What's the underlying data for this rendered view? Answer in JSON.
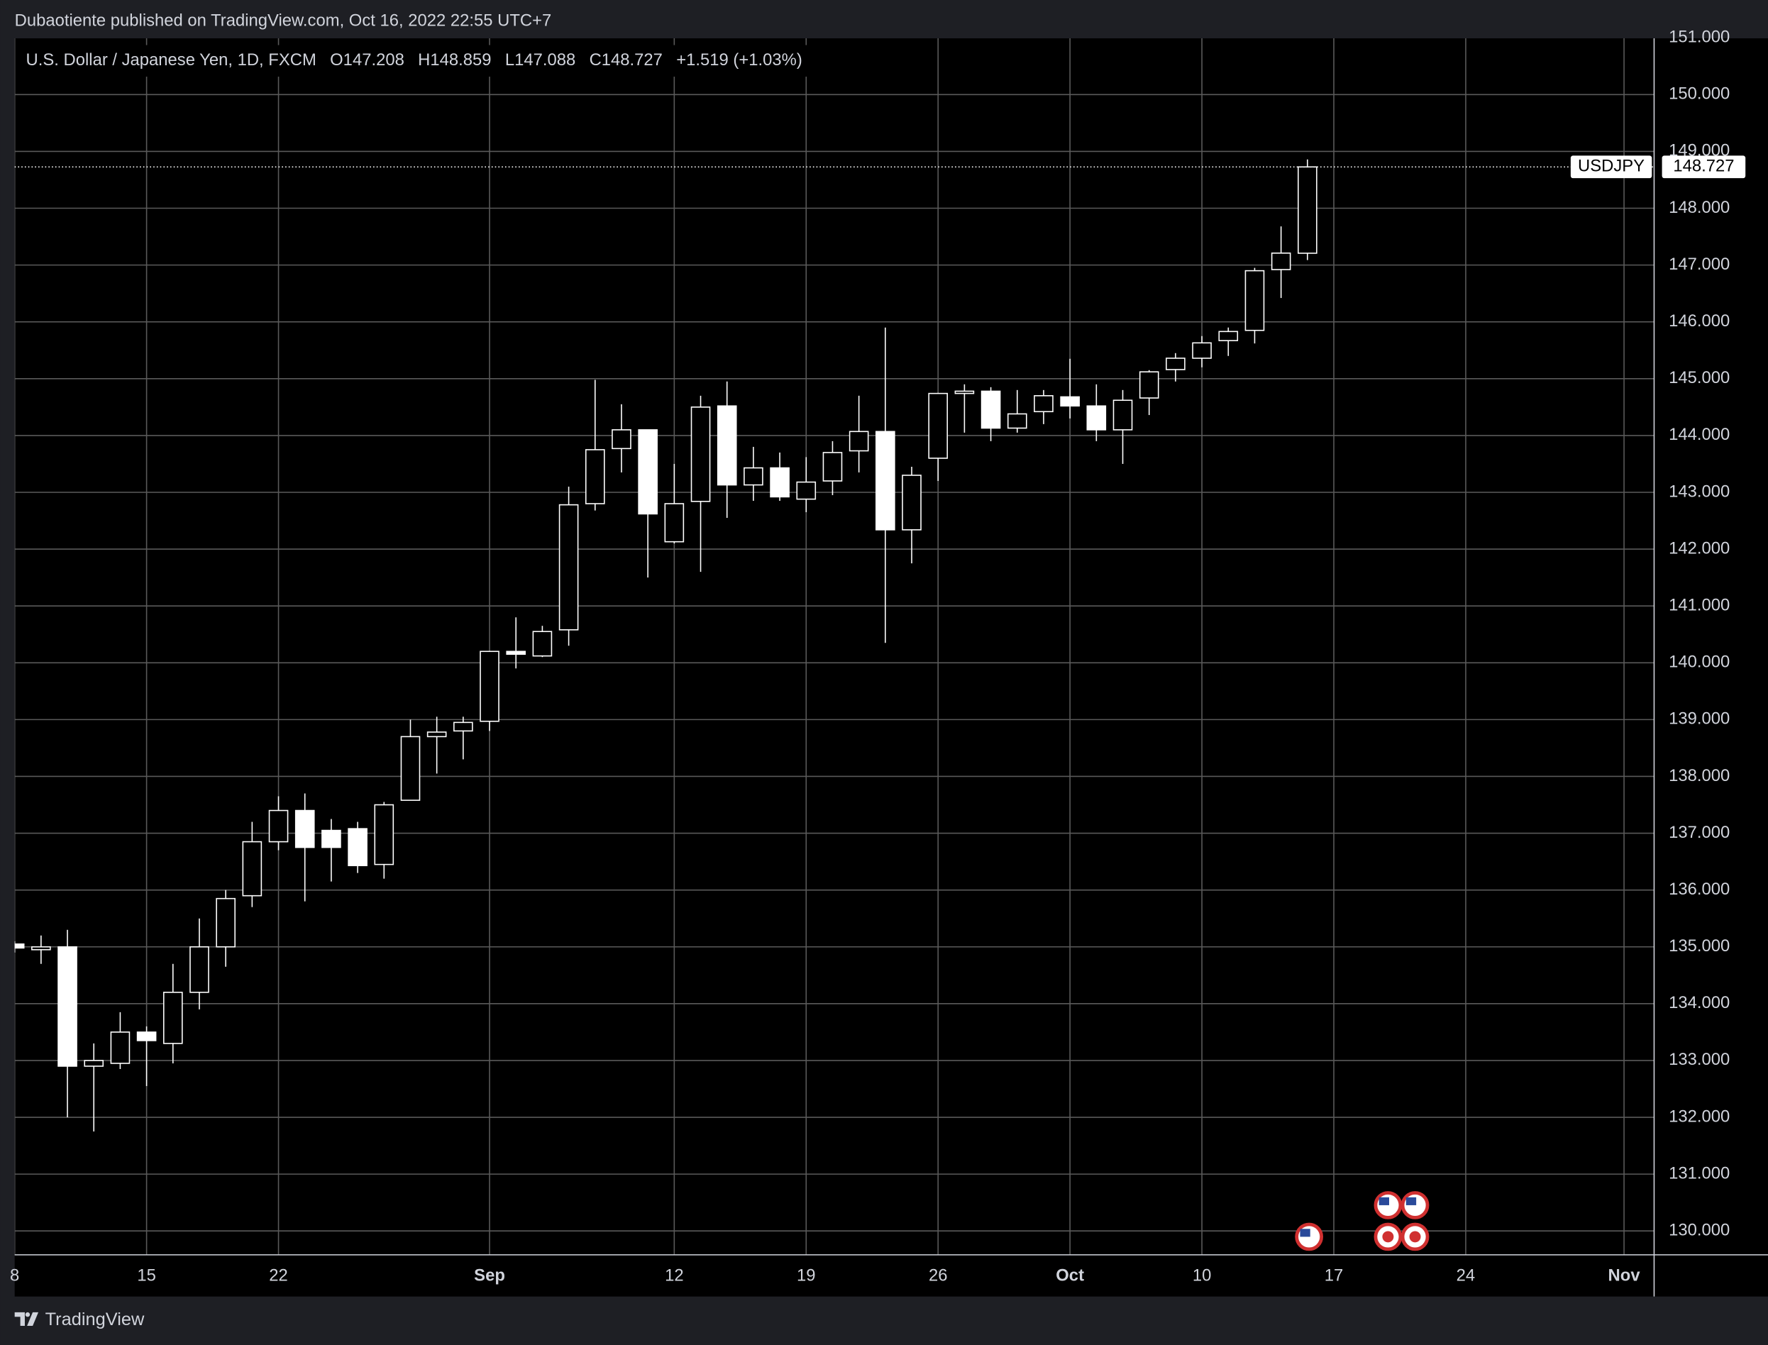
{
  "header": {
    "published": "Dubaotiente published on TradingView.com, Oct 16, 2022 22:55 UTC+7",
    "symbol": "U.S. Dollar / Japanese Yen, 1D, FXCM",
    "open": "O147.208",
    "high": "H148.859",
    "low": "L147.088",
    "close": "C148.727",
    "change": "+1.519 (+1.03%)"
  },
  "footer": {
    "brand": "TradingView"
  },
  "chart_data": {
    "type": "candlestick",
    "x": [
      -5,
      -4,
      -3,
      -2,
      -1,
      0,
      1,
      2,
      3,
      4,
      5,
      6,
      7,
      8,
      9,
      10,
      11,
      12,
      13,
      14,
      15,
      16,
      17,
      18,
      19,
      20,
      21,
      22,
      23,
      24,
      25,
      26,
      27,
      28,
      29,
      30,
      31,
      32,
      33,
      34,
      35,
      36,
      37,
      38,
      39,
      40,
      41,
      42,
      43,
      44
    ],
    "open": [
      135.05,
      134.95,
      135.0,
      132.9,
      132.95,
      133.5,
      133.3,
      134.2,
      135.0,
      135.9,
      136.85,
      137.4,
      137.05,
      137.08,
      136.45,
      137.58,
      138.7,
      138.8,
      138.97,
      140.2,
      140.12,
      140.58,
      142.8,
      143.77,
      144.1,
      142.13,
      142.84,
      144.52,
      143.13,
      143.43,
      142.88,
      143.2,
      143.73,
      144.07,
      142.34,
      143.6,
      144.74,
      144.78,
      144.13,
      144.42,
      144.68,
      144.52,
      144.1,
      144.66,
      145.16,
      145.36,
      145.67,
      145.85,
      146.92,
      147.208
    ],
    "high": [
      135.1,
      135.2,
      135.3,
      133.3,
      133.85,
      133.6,
      134.7,
      135.5,
      136.0,
      137.2,
      137.65,
      137.7,
      137.25,
      137.2,
      137.55,
      139.0,
      139.05,
      139.05,
      140.2,
      140.8,
      140.65,
      143.1,
      144.98,
      144.55,
      144.1,
      143.5,
      144.7,
      144.95,
      143.8,
      143.7,
      143.62,
      143.9,
      144.7,
      145.9,
      143.45,
      144.75,
      144.9,
      144.85,
      144.8,
      144.8,
      145.35,
      144.9,
      144.8,
      145.15,
      145.45,
      145.75,
      145.9,
      146.95,
      147.68,
      148.859
    ],
    "low": [
      134.9,
      134.7,
      132.0,
      131.75,
      132.85,
      132.55,
      132.95,
      133.9,
      134.65,
      135.7,
      136.7,
      135.8,
      136.15,
      136.3,
      136.2,
      137.58,
      138.05,
      138.3,
      138.8,
      139.9,
      140.1,
      140.3,
      142.68,
      143.35,
      141.5,
      142.1,
      141.6,
      142.55,
      142.85,
      142.85,
      142.65,
      142.95,
      143.35,
      140.35,
      141.75,
      143.2,
      144.05,
      143.9,
      144.05,
      144.2,
      144.3,
      143.9,
      143.5,
      144.36,
      144.95,
      145.2,
      145.4,
      145.62,
      146.42,
      147.088
    ],
    "close": [
      134.98,
      135.0,
      132.9,
      133.0,
      133.5,
      133.35,
      134.2,
      135.0,
      135.85,
      136.85,
      137.4,
      136.75,
      136.75,
      136.43,
      137.5,
      138.7,
      138.78,
      138.95,
      140.2,
      140.15,
      140.55,
      142.78,
      143.75,
      144.1,
      142.62,
      142.8,
      144.5,
      143.13,
      143.43,
      142.92,
      143.18,
      143.7,
      144.07,
      142.34,
      143.3,
      144.74,
      144.78,
      144.13,
      144.38,
      144.7,
      144.52,
      144.1,
      144.62,
      145.12,
      145.36,
      145.63,
      145.83,
      146.9,
      147.21,
      148.727
    ],
    "up_color": "#000000",
    "down_color": "#ffffff",
    "edge_color": "#ffffff",
    "xlim": [
      -5,
      57.14
    ],
    "xticks": [
      {
        "value": -5,
        "label": "8"
      },
      {
        "value": 0,
        "label": "15"
      },
      {
        "value": 5,
        "label": "22"
      },
      {
        "value": 13,
        "label": "Sep"
      },
      {
        "value": 20,
        "label": "12"
      },
      {
        "value": 25,
        "label": "19"
      },
      {
        "value": 30,
        "label": "26"
      },
      {
        "value": 35,
        "label": "Oct"
      },
      {
        "value": 40,
        "label": "10"
      },
      {
        "value": 45,
        "label": "17"
      },
      {
        "value": 50,
        "label": "24"
      },
      {
        "value": 56,
        "label": "Nov"
      }
    ],
    "ylim": [
      129.58,
      150.99
    ],
    "yticks": [
      {
        "value": 130,
        "label": "130.000"
      },
      {
        "value": 131,
        "label": "131.000"
      },
      {
        "value": 132,
        "label": "132.000"
      },
      {
        "value": 133,
        "label": "133.000"
      },
      {
        "value": 134,
        "label": "134.000"
      },
      {
        "value": 135,
        "label": "135.000"
      },
      {
        "value": 136,
        "label": "136.000"
      },
      {
        "value": 137,
        "label": "137.000"
      },
      {
        "value": 138,
        "label": "138.000"
      },
      {
        "value": 139,
        "label": "139.000"
      },
      {
        "value": 140,
        "label": "140.000"
      },
      {
        "value": 141,
        "label": "141.000"
      },
      {
        "value": 142,
        "label": "142.000"
      },
      {
        "value": 143,
        "label": "143.000"
      },
      {
        "value": 144,
        "label": "144.000"
      },
      {
        "value": 145,
        "label": "145.000"
      },
      {
        "value": 146,
        "label": "146.000"
      },
      {
        "value": 147,
        "label": "147.000"
      },
      {
        "value": 148,
        "label": "148.000"
      },
      {
        "value": 149,
        "label": "149.000"
      },
      {
        "value": 150,
        "label": "150.000"
      },
      {
        "value": 151,
        "label": "151.000"
      }
    ],
    "grid": true,
    "last_price": {
      "label": "USDJPY",
      "value": 148.727
    }
  }
}
